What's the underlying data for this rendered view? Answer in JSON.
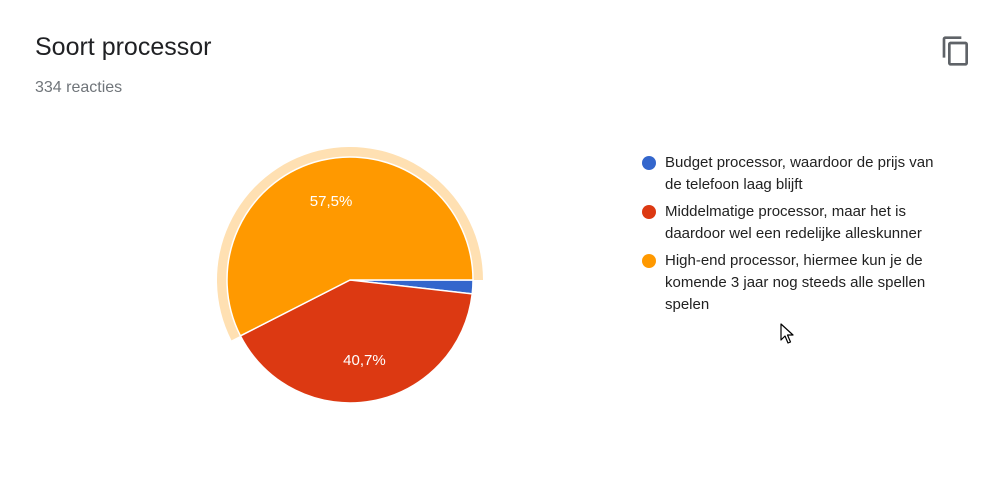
{
  "header": {
    "title": "Soort processor",
    "responses": "334 reacties"
  },
  "toolbar": {
    "copy_icon": "copy-icon"
  },
  "chart_data": {
    "type": "pie",
    "categories": [
      "Budget processor, waardoor de prijs van de telefoon laag blijft",
      "Middelmatige processor, maar het is daardoor wel een redelijke alleskunner",
      "High-end processor, hiermee kun je de komende 3 jaar nog steeds alle spellen spelen"
    ],
    "values": [
      1.8,
      40.7,
      57.5
    ],
    "data_labels": [
      "",
      "40,7%",
      "57,5%"
    ],
    "colors": [
      "#3366cc",
      "#dc3912",
      "#ff9900"
    ],
    "highlight_color": "#ffe0b2",
    "highlighted_index": 2,
    "legend_position": "right"
  }
}
